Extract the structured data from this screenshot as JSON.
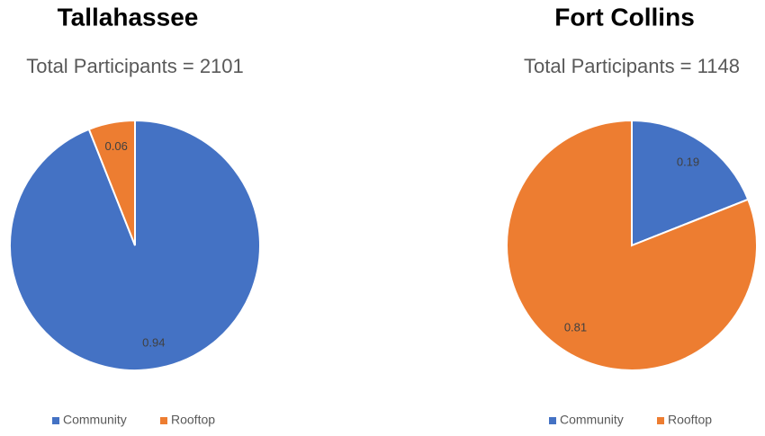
{
  "chart_data": [
    {
      "type": "pie",
      "title": "Tallahassee",
      "subtitle": "Total Participants = 2101",
      "categories": [
        "Community",
        "Rooftop"
      ],
      "values": [
        0.94,
        0.06
      ],
      "colors": [
        "#4472c4",
        "#ed7d31"
      ],
      "legend": "bottom"
    },
    {
      "type": "pie",
      "title": "Fort Collins",
      "subtitle": "Total Participants = 1148",
      "categories": [
        "Community",
        "Rooftop"
      ],
      "values": [
        0.19,
        0.81
      ],
      "colors": [
        "#4472c4",
        "#ed7d31"
      ],
      "legend": "bottom"
    }
  ]
}
